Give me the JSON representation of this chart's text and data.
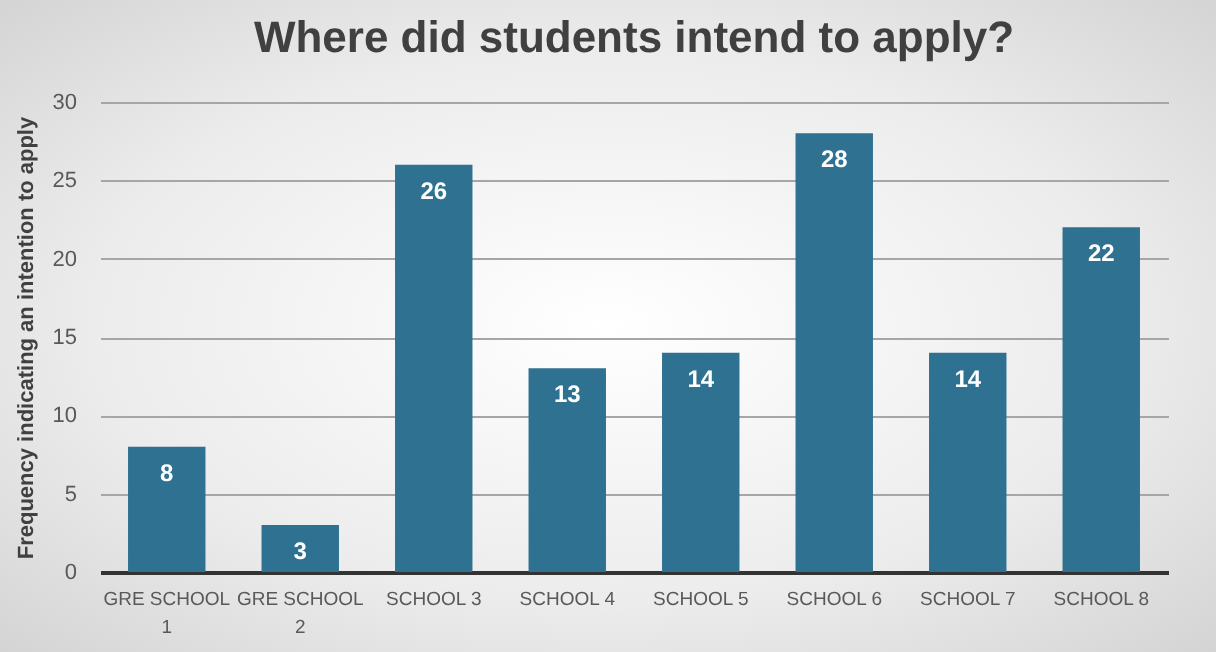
{
  "chart_data": {
    "type": "bar",
    "title": "Where did students intend to apply?",
    "ylabel": "Frequency indicating an intention to apply",
    "categories": [
      "GRE SCHOOL 1",
      "GRE SCHOOL 2",
      "SCHOOL 3",
      "SCHOOL 4",
      "SCHOOL 5",
      "SCHOOL 6",
      "SCHOOL 7",
      "SCHOOL 8"
    ],
    "values": [
      8,
      3,
      26,
      13,
      14,
      28,
      14,
      22
    ],
    "color": "#2f7190",
    "ylim": [
      0,
      30
    ],
    "yticks": [
      0,
      5,
      10,
      15,
      20,
      25,
      30
    ],
    "grid": true,
    "data_labels": true
  }
}
